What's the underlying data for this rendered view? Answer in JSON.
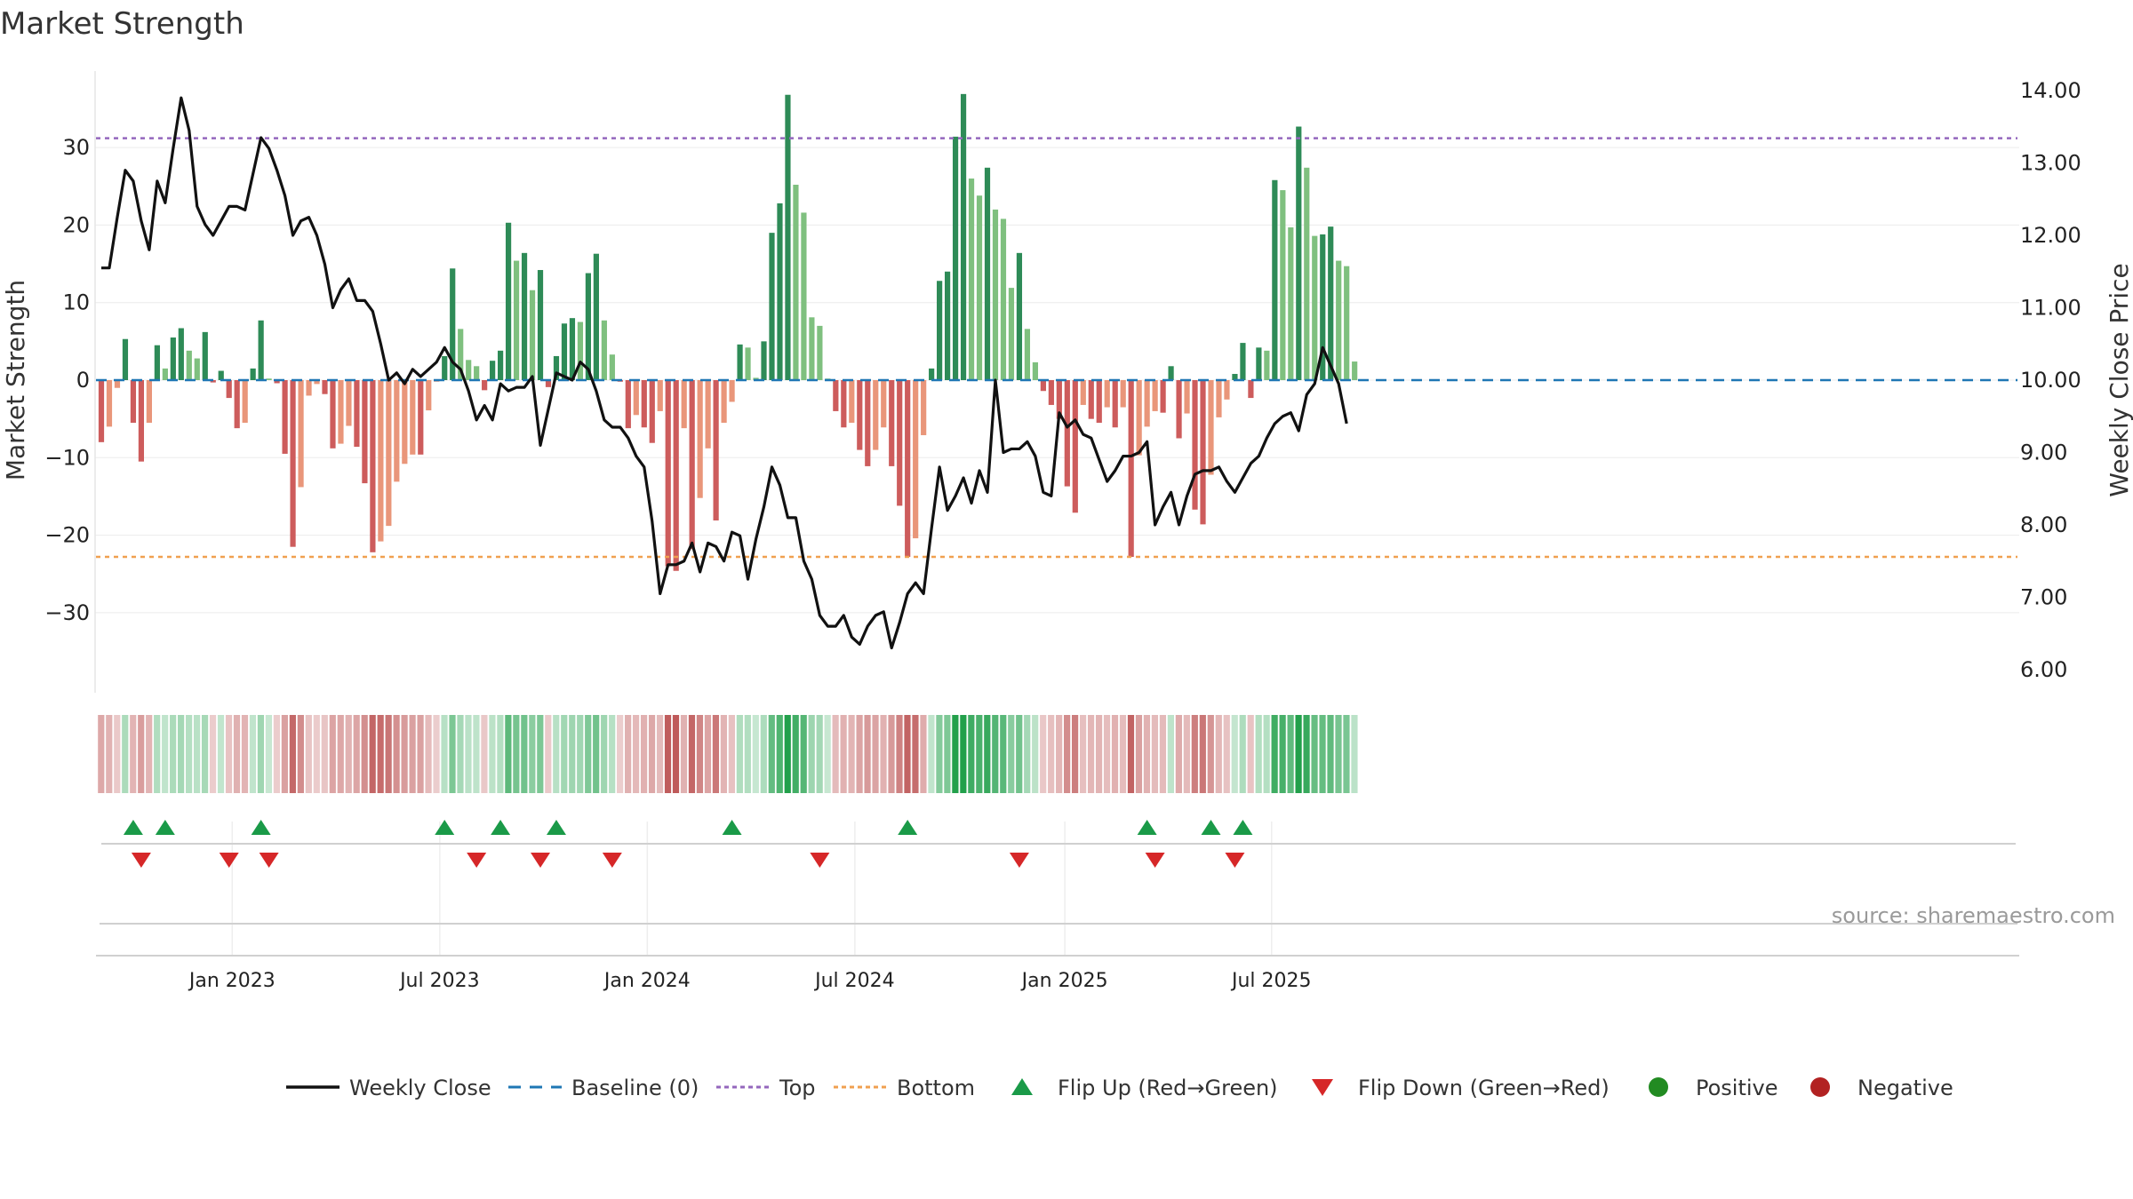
{
  "title": "Market Strength",
  "source": "source: sharemaestro.com",
  "colors": {
    "dark_green": "#2e8b57",
    "light_green": "#7fc07f",
    "dark_red": "#cd5c5c",
    "light_red": "#e9967a",
    "close_line": "#111111",
    "baseline": "#1f77b4",
    "top": "#9467bd",
    "bottom": "#f0a050",
    "flip_up": "#1a9a48",
    "flip_down": "#d62728",
    "positive": "#228b22",
    "negative": "#b22222"
  },
  "chart_data": {
    "type": "bar",
    "title": "Market Strength",
    "ylabel_left": "Market Strength",
    "ylabel_right": "Weekly Close Price",
    "y_left_range": [
      -40,
      40
    ],
    "y_left_ticks": [
      "30",
      "20",
      "10",
      "0",
      "−10",
      "−20",
      "−30"
    ],
    "y_left_tick_values": [
      30,
      20,
      10,
      0,
      -10,
      -20,
      -30
    ],
    "y_right_range": [
      5.75,
      14.5
    ],
    "y_right_ticks": [
      "14.00",
      "13.00",
      "12.00",
      "11.00",
      "10.00",
      "9.00",
      "8.00",
      "7.00",
      "6.00"
    ],
    "y_right_tick_values": [
      14,
      13,
      12,
      11,
      10,
      9,
      8,
      7,
      6
    ],
    "top_threshold": 31.2,
    "bottom_threshold": -22.8,
    "baseline": 0,
    "x_start": "2022-10-03",
    "x_end": "2025-08-25",
    "x_ticks": [
      "Jan 2023",
      "Jul 2023",
      "Jan 2024",
      "Jul 2024",
      "Jan 2025",
      "Jul 2025"
    ],
    "x_tick_indices": [
      16.4,
      42.4,
      68.4,
      94.4,
      120.7,
      146.6
    ],
    "strength": [
      -8,
      -6,
      -1,
      5.3,
      -5.5,
      -10.5,
      -5.5,
      4.5,
      1.5,
      5.5,
      6.7,
      3.8,
      2.8,
      6.2,
      -0.3,
      1.2,
      -2.3,
      -6.2,
      -5.5,
      1.5,
      7.7,
      0.2,
      -0.4,
      -9.5,
      -21.5,
      -13.8,
      -2,
      -0.5,
      -1.8,
      -8.8,
      -8.2,
      -5.9,
      -8.6,
      -13.3,
      -22.2,
      -20.8,
      -18.8,
      -13.1,
      -10.8,
      -9.6,
      -9.6,
      -3.9,
      -0.2,
      3.1,
      14.4,
      6.6,
      2.6,
      1.8,
      -1.3,
      2.5,
      3.8,
      20.3,
      15.4,
      16.4,
      11.6,
      14.2,
      -0.9,
      3.1,
      7.3,
      8.0,
      7.5,
      13.8,
      16.3,
      7.7,
      3.3,
      -0.2,
      -6.2,
      -4.5,
      -6.1,
      -8.1,
      -4.0,
      -24.0,
      -24.6,
      -6.2,
      -21.8,
      -15.2,
      -8.8,
      -18.1,
      -5.5,
      -2.8,
      4.6,
      4.2,
      0.3,
      5.0,
      19.0,
      22.8,
      36.8,
      25.2,
      21.6,
      8.1,
      7.0,
      0.2,
      -4.0,
      -6.1,
      -5.5,
      -9.0,
      -11.1,
      -9.0,
      -6.1,
      -11.1,
      -16.2,
      -22.8,
      -20.4,
      -7.1,
      1.5,
      12.8,
      14.0,
      31.4,
      36.9,
      26.0,
      23.8,
      27.4,
      22.0,
      20.8,
      11.9,
      16.4,
      6.6,
      2.3,
      -1.4,
      -3.2,
      -5.0,
      -13.7,
      -17.1,
      -3.2,
      -5.0,
      -5.5,
      -3.5,
      -6.1,
      -3.5,
      -22.8,
      -9.7,
      -6.0,
      -4.0,
      -4.2,
      1.8,
      -7.5,
      -4.3,
      -16.7,
      -18.6,
      -12.2,
      -4.8,
      -2.5,
      0.8,
      4.8,
      -2.3,
      4.2,
      3.8,
      25.8,
      24.5,
      19.7,
      32.7,
      27.4,
      18.6,
      18.8,
      19.8,
      15.4,
      14.7,
      2.4
    ],
    "weekly_close": [
      11.55,
      11.55,
      12.25,
      12.9,
      12.75,
      12.2,
      11.8,
      12.75,
      12.45,
      13.2,
      13.9,
      13.45,
      12.4,
      12.15,
      12.0,
      12.2,
      12.4,
      12.4,
      12.35,
      12.85,
      13.35,
      13.2,
      12.9,
      12.55,
      12.0,
      12.2,
      12.25,
      12.0,
      11.6,
      11.0,
      11.25,
      11.4,
      11.1,
      11.1,
      10.95,
      10.5,
      10.0,
      10.1,
      9.95,
      10.15,
      10.05,
      10.15,
      10.25,
      10.45,
      10.25,
      10.15,
      9.85,
      9.45,
      9.65,
      9.45,
      9.95,
      9.85,
      9.9,
      9.9,
      10.05,
      9.1,
      9.6,
      10.1,
      10.05,
      10.0,
      10.25,
      10.15,
      9.85,
      9.45,
      9.35,
      9.35,
      9.2,
      8.95,
      8.8,
      8.05,
      7.05,
      7.45,
      7.45,
      7.5,
      7.75,
      7.35,
      7.75,
      7.7,
      7.5,
      7.9,
      7.85,
      7.25,
      7.8,
      8.25,
      8.8,
      8.55,
      8.1,
      8.1,
      7.5,
      7.25,
      6.75,
      6.6,
      6.6,
      6.75,
      6.45,
      6.35,
      6.6,
      6.75,
      6.8,
      6.3,
      6.65,
      7.05,
      7.2,
      7.05,
      7.95,
      8.8,
      8.2,
      8.4,
      8.65,
      8.3,
      8.75,
      8.45,
      10.0,
      9.0,
      9.05,
      9.05,
      9.15,
      8.95,
      8.45,
      8.4,
      9.55,
      9.35,
      9.45,
      9.25,
      9.2,
      8.9,
      8.6,
      8.75,
      8.95,
      8.95,
      9.0,
      9.15,
      8.0,
      8.25,
      8.45,
      8.0,
      8.4,
      8.7,
      8.75,
      8.75,
      8.8,
      8.6,
      8.45,
      8.65,
      8.85,
      8.95,
      9.2,
      9.4,
      9.5,
      9.55,
      9.3,
      9.8,
      9.95,
      10.45,
      10.2,
      9.95,
      9.4
    ],
    "flips_up": [
      4,
      8,
      20,
      43,
      50,
      57,
      79,
      101,
      131,
      139,
      143
    ],
    "flips_down": [
      5,
      16,
      21,
      47,
      55,
      64,
      90,
      115,
      132,
      142
    ]
  },
  "legend": [
    {
      "key": "close",
      "label": "Weekly Close"
    },
    {
      "key": "baseline",
      "label": "Baseline (0)"
    },
    {
      "key": "top",
      "label": "Top"
    },
    {
      "key": "bottom",
      "label": "Bottom"
    },
    {
      "key": "flip_up",
      "label": "Flip Up (Red→Green)"
    },
    {
      "key": "flip_down",
      "label": "Flip Down (Green→Red)"
    },
    {
      "key": "positive",
      "label": "Positive"
    },
    {
      "key": "negative",
      "label": "Negative"
    }
  ]
}
